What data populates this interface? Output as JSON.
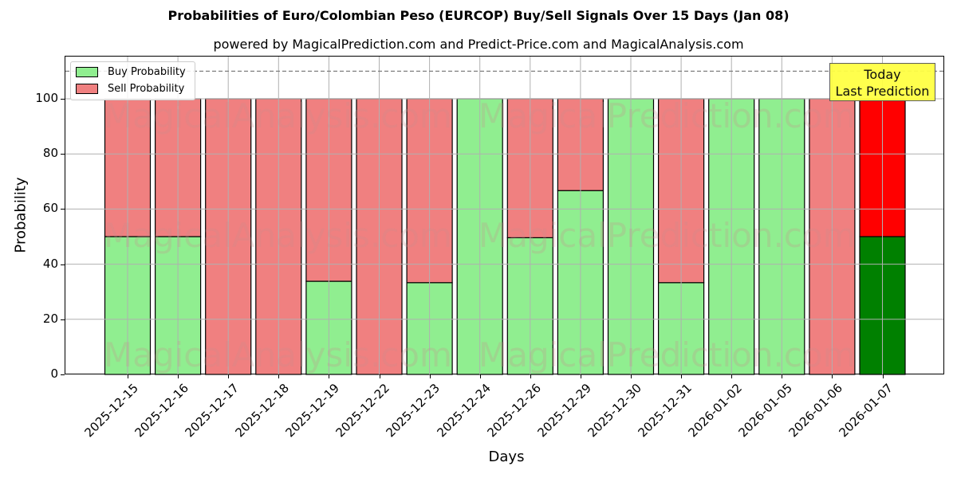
{
  "chart_data": {
    "type": "bar",
    "stacked": true,
    "title": "Probabilities of Euro/Colombian Peso (EURCOP) Buy/Sell Signals Over 15 Days (Jan 08)",
    "subtitle": "powered by MagicalPrediction.com and Predict-Price.com and MagicalAnalysis.com",
    "xlabel": "Days",
    "ylabel": "Probability",
    "ylim": [
      0,
      115
    ],
    "yticks": [
      0,
      20,
      40,
      60,
      80,
      100
    ],
    "grid": true,
    "reference_line": {
      "y": 110,
      "style": "dashed",
      "color": "#808080"
    },
    "legend_position": "upper left",
    "categories": [
      "2025-12-15",
      "2025-12-16",
      "2025-12-17",
      "2025-12-18",
      "2025-12-19",
      "2025-12-22",
      "2025-12-23",
      "2025-12-24",
      "2025-12-26",
      "2025-12-29",
      "2025-12-30",
      "2025-12-31",
      "2026-01-02",
      "2026-01-05",
      "2026-01-06",
      "2026-01-07"
    ],
    "series": [
      {
        "name": "Buy Probability",
        "color": "#90ee90",
        "values": [
          50,
          50,
          0,
          0,
          33.8,
          0,
          33.3,
          100,
          49.6,
          66.7,
          100,
          33.3,
          100,
          100,
          0,
          50
        ]
      },
      {
        "name": "Sell Probability",
        "color": "#f08080",
        "values": [
          50,
          50,
          100,
          100,
          66.2,
          100,
          66.7,
          0,
          50.4,
          33.3,
          0,
          66.7,
          0,
          0,
          100,
          50
        ]
      }
    ],
    "highlight": {
      "index": 15,
      "buy_color": "#008000",
      "sell_color": "#ff0000",
      "annotation": [
        "Today",
        "Last Prediction"
      ],
      "annotation_bg": "#ffff44"
    },
    "watermarks": [
      "MagicalAnalysis.com",
      "MagicalPrediction.com"
    ]
  }
}
